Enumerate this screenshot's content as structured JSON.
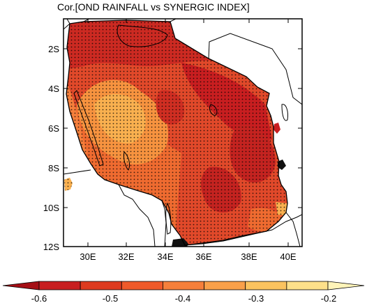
{
  "title": "Cor.[OND RAINFALL vs SYNERGIC INDEX]",
  "map": {
    "lon_range": [
      28.8,
      41.2
    ],
    "lat_range": [
      -12,
      -0.8
    ],
    "x_ticks": [
      "30E",
      "32E",
      "34E",
      "36E",
      "38E",
      "40E"
    ],
    "y_ticks": [
      "2S",
      "4S",
      "6S",
      "8S",
      "10S",
      "12S"
    ],
    "stippling": "significant correlation"
  },
  "colorbar": {
    "labels": [
      "-0.6",
      "-0.5",
      "-0.4",
      "-0.3",
      "-0.2"
    ],
    "colors": [
      "#a50f15",
      "#c81e20",
      "#de3b1f",
      "#ef5a2a",
      "#f57f3b",
      "#f9a04a",
      "#fbc35f",
      "#fde08a",
      "#fff4b9"
    ]
  },
  "colors": {
    "core_red": "#cc2a22",
    "mid_red": "#df4426",
    "orange": "#ef6b30",
    "light_orange": "#f7933f",
    "yellow_orange": "#f9b04f"
  }
}
